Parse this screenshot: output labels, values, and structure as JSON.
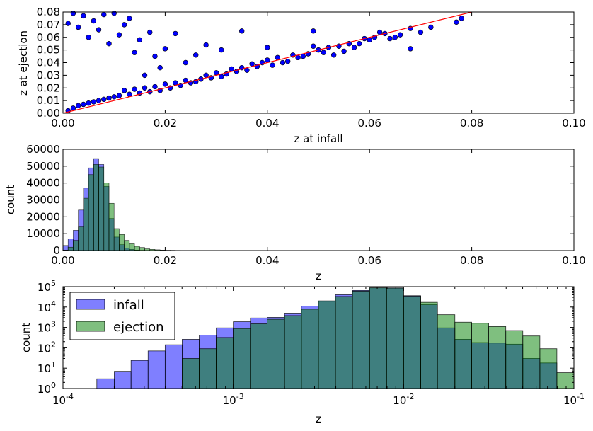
{
  "chart_data": [
    {
      "type": "scatter",
      "xlabel": "z at infall",
      "ylabel": "z at ejection",
      "xlim": [
        0.0,
        0.1
      ],
      "ylim": [
        0.0,
        0.08
      ],
      "xticks": [
        "0.00",
        "0.02",
        "0.04",
        "0.06",
        "0.08",
        "0.10"
      ],
      "yticks": [
        "0.00",
        "0.01",
        "0.02",
        "0.03",
        "0.04",
        "0.05",
        "0.06",
        "0.07",
        "0.08"
      ],
      "marker_color": "#0000ff",
      "reference_line": {
        "x": [
          0.0,
          0.08
        ],
        "y": [
          0.0,
          0.08
        ],
        "color": "#ff0000"
      },
      "points": [
        [
          0.078,
          0.075
        ],
        [
          0.077,
          0.072
        ],
        [
          0.072,
          0.068
        ],
        [
          0.07,
          0.064
        ],
        [
          0.068,
          0.067
        ],
        [
          0.068,
          0.051
        ],
        [
          0.066,
          0.062
        ],
        [
          0.065,
          0.06
        ],
        [
          0.064,
          0.059
        ],
        [
          0.063,
          0.063
        ],
        [
          0.062,
          0.064
        ],
        [
          0.061,
          0.06
        ],
        [
          0.06,
          0.058
        ],
        [
          0.059,
          0.059
        ],
        [
          0.058,
          0.055
        ],
        [
          0.057,
          0.052
        ],
        [
          0.056,
          0.055
        ],
        [
          0.055,
          0.049
        ],
        [
          0.054,
          0.053
        ],
        [
          0.053,
          0.046
        ],
        [
          0.052,
          0.052
        ],
        [
          0.051,
          0.048
        ],
        [
          0.05,
          0.05
        ],
        [
          0.049,
          0.053
        ],
        [
          0.049,
          0.065
        ],
        [
          0.048,
          0.047
        ],
        [
          0.047,
          0.045
        ],
        [
          0.046,
          0.044
        ],
        [
          0.045,
          0.046
        ],
        [
          0.044,
          0.041
        ],
        [
          0.043,
          0.04
        ],
        [
          0.042,
          0.044
        ],
        [
          0.041,
          0.038
        ],
        [
          0.04,
          0.042
        ],
        [
          0.04,
          0.052
        ],
        [
          0.039,
          0.04
        ],
        [
          0.038,
          0.037
        ],
        [
          0.037,
          0.039
        ],
        [
          0.036,
          0.034
        ],
        [
          0.035,
          0.036
        ],
        [
          0.035,
          0.065
        ],
        [
          0.034,
          0.033
        ],
        [
          0.033,
          0.035
        ],
        [
          0.032,
          0.031
        ],
        [
          0.031,
          0.029
        ],
        [
          0.031,
          0.05
        ],
        [
          0.03,
          0.032
        ],
        [
          0.029,
          0.028
        ],
        [
          0.028,
          0.03
        ],
        [
          0.028,
          0.054
        ],
        [
          0.027,
          0.027
        ],
        [
          0.026,
          0.025
        ],
        [
          0.026,
          0.046
        ],
        [
          0.025,
          0.024
        ],
        [
          0.024,
          0.026
        ],
        [
          0.024,
          0.04
        ],
        [
          0.023,
          0.022
        ],
        [
          0.022,
          0.024
        ],
        [
          0.022,
          0.063
        ],
        [
          0.021,
          0.02
        ],
        [
          0.02,
          0.023
        ],
        [
          0.02,
          0.051
        ],
        [
          0.019,
          0.018
        ],
        [
          0.019,
          0.036
        ],
        [
          0.018,
          0.021
        ],
        [
          0.018,
          0.045
        ],
        [
          0.017,
          0.017
        ],
        [
          0.017,
          0.064
        ],
        [
          0.016,
          0.02
        ],
        [
          0.016,
          0.03
        ],
        [
          0.015,
          0.016
        ],
        [
          0.015,
          0.058
        ],
        [
          0.014,
          0.019
        ],
        [
          0.014,
          0.048
        ],
        [
          0.013,
          0.015
        ],
        [
          0.013,
          0.075
        ],
        [
          0.012,
          0.018
        ],
        [
          0.012,
          0.07
        ],
        [
          0.011,
          0.014
        ],
        [
          0.011,
          0.062
        ],
        [
          0.01,
          0.013
        ],
        [
          0.01,
          0.079
        ],
        [
          0.009,
          0.012
        ],
        [
          0.009,
          0.055
        ],
        [
          0.008,
          0.011
        ],
        [
          0.008,
          0.078
        ],
        [
          0.007,
          0.01
        ],
        [
          0.007,
          0.066
        ],
        [
          0.006,
          0.009
        ],
        [
          0.006,
          0.073
        ],
        [
          0.005,
          0.008
        ],
        [
          0.005,
          0.06
        ],
        [
          0.004,
          0.007
        ],
        [
          0.004,
          0.077
        ],
        [
          0.003,
          0.006
        ],
        [
          0.003,
          0.068
        ],
        [
          0.002,
          0.004
        ],
        [
          0.002,
          0.079
        ],
        [
          0.001,
          0.002
        ],
        [
          0.001,
          0.071
        ]
      ]
    },
    {
      "type": "bar",
      "xlabel": "z",
      "ylabel": "count",
      "xlim": [
        0.0,
        0.1
      ],
      "ylim": [
        0,
        60000
      ],
      "xticks": [
        "0.00",
        "0.02",
        "0.04",
        "0.06",
        "0.08",
        "0.10"
      ],
      "yticks": [
        "0",
        "10000",
        "20000",
        "30000",
        "40000",
        "50000",
        "60000"
      ],
      "bin_width": 0.001,
      "bin_starts": [
        0.0,
        0.001,
        0.002,
        0.003,
        0.004,
        0.005,
        0.006,
        0.007,
        0.008,
        0.009,
        0.01,
        0.011,
        0.012,
        0.013,
        0.014,
        0.015,
        0.016,
        0.017,
        0.018,
        0.019,
        0.02,
        0.021,
        0.022,
        0.023,
        0.024,
        0.025,
        0.026
      ],
      "series": [
        {
          "name": "infall",
          "color": "#0000ff",
          "alpha": 0.5,
          "values": [
            3000,
            7000,
            12000,
            24000,
            37000,
            49000,
            54500,
            51000,
            38000,
            19000,
            8000,
            3500,
            1500,
            700,
            300,
            150,
            80,
            40,
            20,
            10,
            5,
            3,
            2,
            1,
            1,
            0,
            0
          ]
        },
        {
          "name": "ejection",
          "color": "#008000",
          "alpha": 0.5,
          "values": [
            300,
            2000,
            6000,
            14000,
            31000,
            45000,
            51000,
            49500,
            40000,
            28000,
            13000,
            9500,
            6000,
            4000,
            2500,
            1800,
            1000,
            700,
            450,
            300,
            200,
            150,
            100,
            70,
            50,
            40,
            30
          ]
        }
      ]
    },
    {
      "type": "bar",
      "xlabel": "z",
      "ylabel": "count",
      "xscale": "log",
      "yscale": "log",
      "xlim": [
        0.0001,
        0.1
      ],
      "ylim": [
        1,
        100000
      ],
      "legend": {
        "location": "upper-left",
        "entries": [
          "infall",
          "ejection"
        ]
      },
      "xticks": [
        {
          "base": "10",
          "exp": "-4"
        },
        {
          "base": "10",
          "exp": "-3"
        },
        {
          "base": "10",
          "exp": "-2"
        },
        {
          "base": "10",
          "exp": "-1"
        }
      ],
      "yticks": [
        {
          "base": "10",
          "exp": "0"
        },
        {
          "base": "10",
          "exp": "1"
        },
        {
          "base": "10",
          "exp": "2"
        },
        {
          "base": "10",
          "exp": "3"
        },
        {
          "base": "10",
          "exp": "4"
        },
        {
          "base": "10",
          "exp": "5"
        }
      ],
      "bin_edges": [
        0.0001,
        0.000126,
        0.000158,
        0.0002,
        0.000251,
        0.000316,
        0.000398,
        0.000501,
        0.000631,
        0.000794,
        0.001,
        0.00126,
        0.00158,
        0.002,
        0.00251,
        0.00316,
        0.00398,
        0.00501,
        0.00631,
        0.00794,
        0.01,
        0.0126,
        0.0158,
        0.02,
        0.0251,
        0.0316,
        0.0398,
        0.0501,
        0.0631,
        0.0794,
        0.1
      ],
      "series": [
        {
          "name": "infall",
          "color": "#0000ff",
          "alpha": 0.5,
          "values": [
            0,
            0,
            3,
            7,
            24,
            70,
            140,
            260,
            420,
            950,
            1900,
            2900,
            3100,
            5000,
            11000,
            20000,
            40000,
            65000,
            87000,
            87000,
            36000,
            13000,
            950,
            260,
            180,
            170,
            150,
            30,
            18,
            0
          ]
        },
        {
          "name": "ejection",
          "color": "#008000",
          "alpha": 0.5,
          "values": [
            0,
            0,
            0,
            0,
            0,
            0,
            0,
            30,
            90,
            320,
            880,
            1500,
            2500,
            3800,
            7800,
            19000,
            33000,
            60000,
            88000,
            85000,
            34000,
            17000,
            4200,
            1800,
            1600,
            1100,
            700,
            380,
            90,
            6
          ]
        }
      ]
    }
  ]
}
